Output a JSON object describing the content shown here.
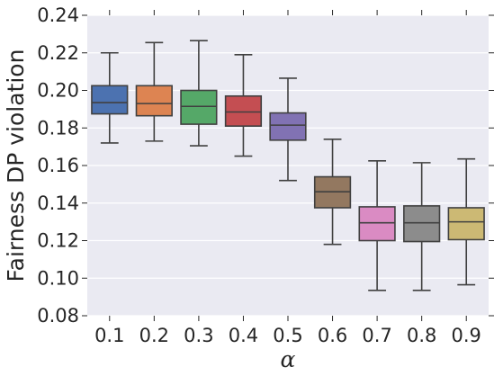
{
  "chart_data": {
    "type": "box",
    "xlabel": "α",
    "ylabel": "Fairness DP violation",
    "ylim": [
      0.08,
      0.24
    ],
    "yticks": [
      "0.08",
      "0.10",
      "0.12",
      "0.14",
      "0.16",
      "0.18",
      "0.20",
      "0.22",
      "0.24"
    ],
    "ytick_values": [
      0.08,
      0.1,
      0.12,
      0.14,
      0.16,
      0.18,
      0.2,
      0.22,
      0.24
    ],
    "grid": true,
    "categories": [
      "0.1",
      "0.2",
      "0.3",
      "0.4",
      "0.5",
      "0.6",
      "0.7",
      "0.8",
      "0.9"
    ],
    "boxes": [
      {
        "category": "0.1",
        "whisker_low": 0.172,
        "q1": 0.1875,
        "median": 0.1935,
        "q3": 0.2025,
        "whisker_high": 0.22,
        "color": "#4c72b0"
      },
      {
        "category": "0.2",
        "whisker_low": 0.173,
        "q1": 0.1865,
        "median": 0.193,
        "q3": 0.2025,
        "whisker_high": 0.2255,
        "color": "#dd8452"
      },
      {
        "category": "0.3",
        "whisker_low": 0.1705,
        "q1": 0.182,
        "median": 0.1915,
        "q3": 0.2,
        "whisker_high": 0.2265,
        "color": "#55a868"
      },
      {
        "category": "0.4",
        "whisker_low": 0.165,
        "q1": 0.181,
        "median": 0.1885,
        "q3": 0.197,
        "whisker_high": 0.219,
        "color": "#c44e52"
      },
      {
        "category": "0.5",
        "whisker_low": 0.152,
        "q1": 0.1735,
        "median": 0.1815,
        "q3": 0.188,
        "whisker_high": 0.2065,
        "color": "#8172b3"
      },
      {
        "category": "0.6",
        "whisker_low": 0.118,
        "q1": 0.1375,
        "median": 0.146,
        "q3": 0.154,
        "whisker_high": 0.174,
        "color": "#937860"
      },
      {
        "category": "0.7",
        "whisker_low": 0.0935,
        "q1": 0.12,
        "median": 0.1295,
        "q3": 0.138,
        "whisker_high": 0.1625,
        "color": "#da8bc3"
      },
      {
        "category": "0.8",
        "whisker_low": 0.0935,
        "q1": 0.1195,
        "median": 0.1295,
        "q3": 0.1385,
        "whisker_high": 0.1615,
        "color": "#8c8c8c"
      },
      {
        "category": "0.9",
        "whisker_low": 0.0965,
        "q1": 0.1205,
        "median": 0.13,
        "q3": 0.1375,
        "whisker_high": 0.1635,
        "color": "#ccb974"
      }
    ],
    "colors": {
      "background": "#eaeaf2",
      "grid": "#ffffff",
      "line": "#404040"
    }
  }
}
